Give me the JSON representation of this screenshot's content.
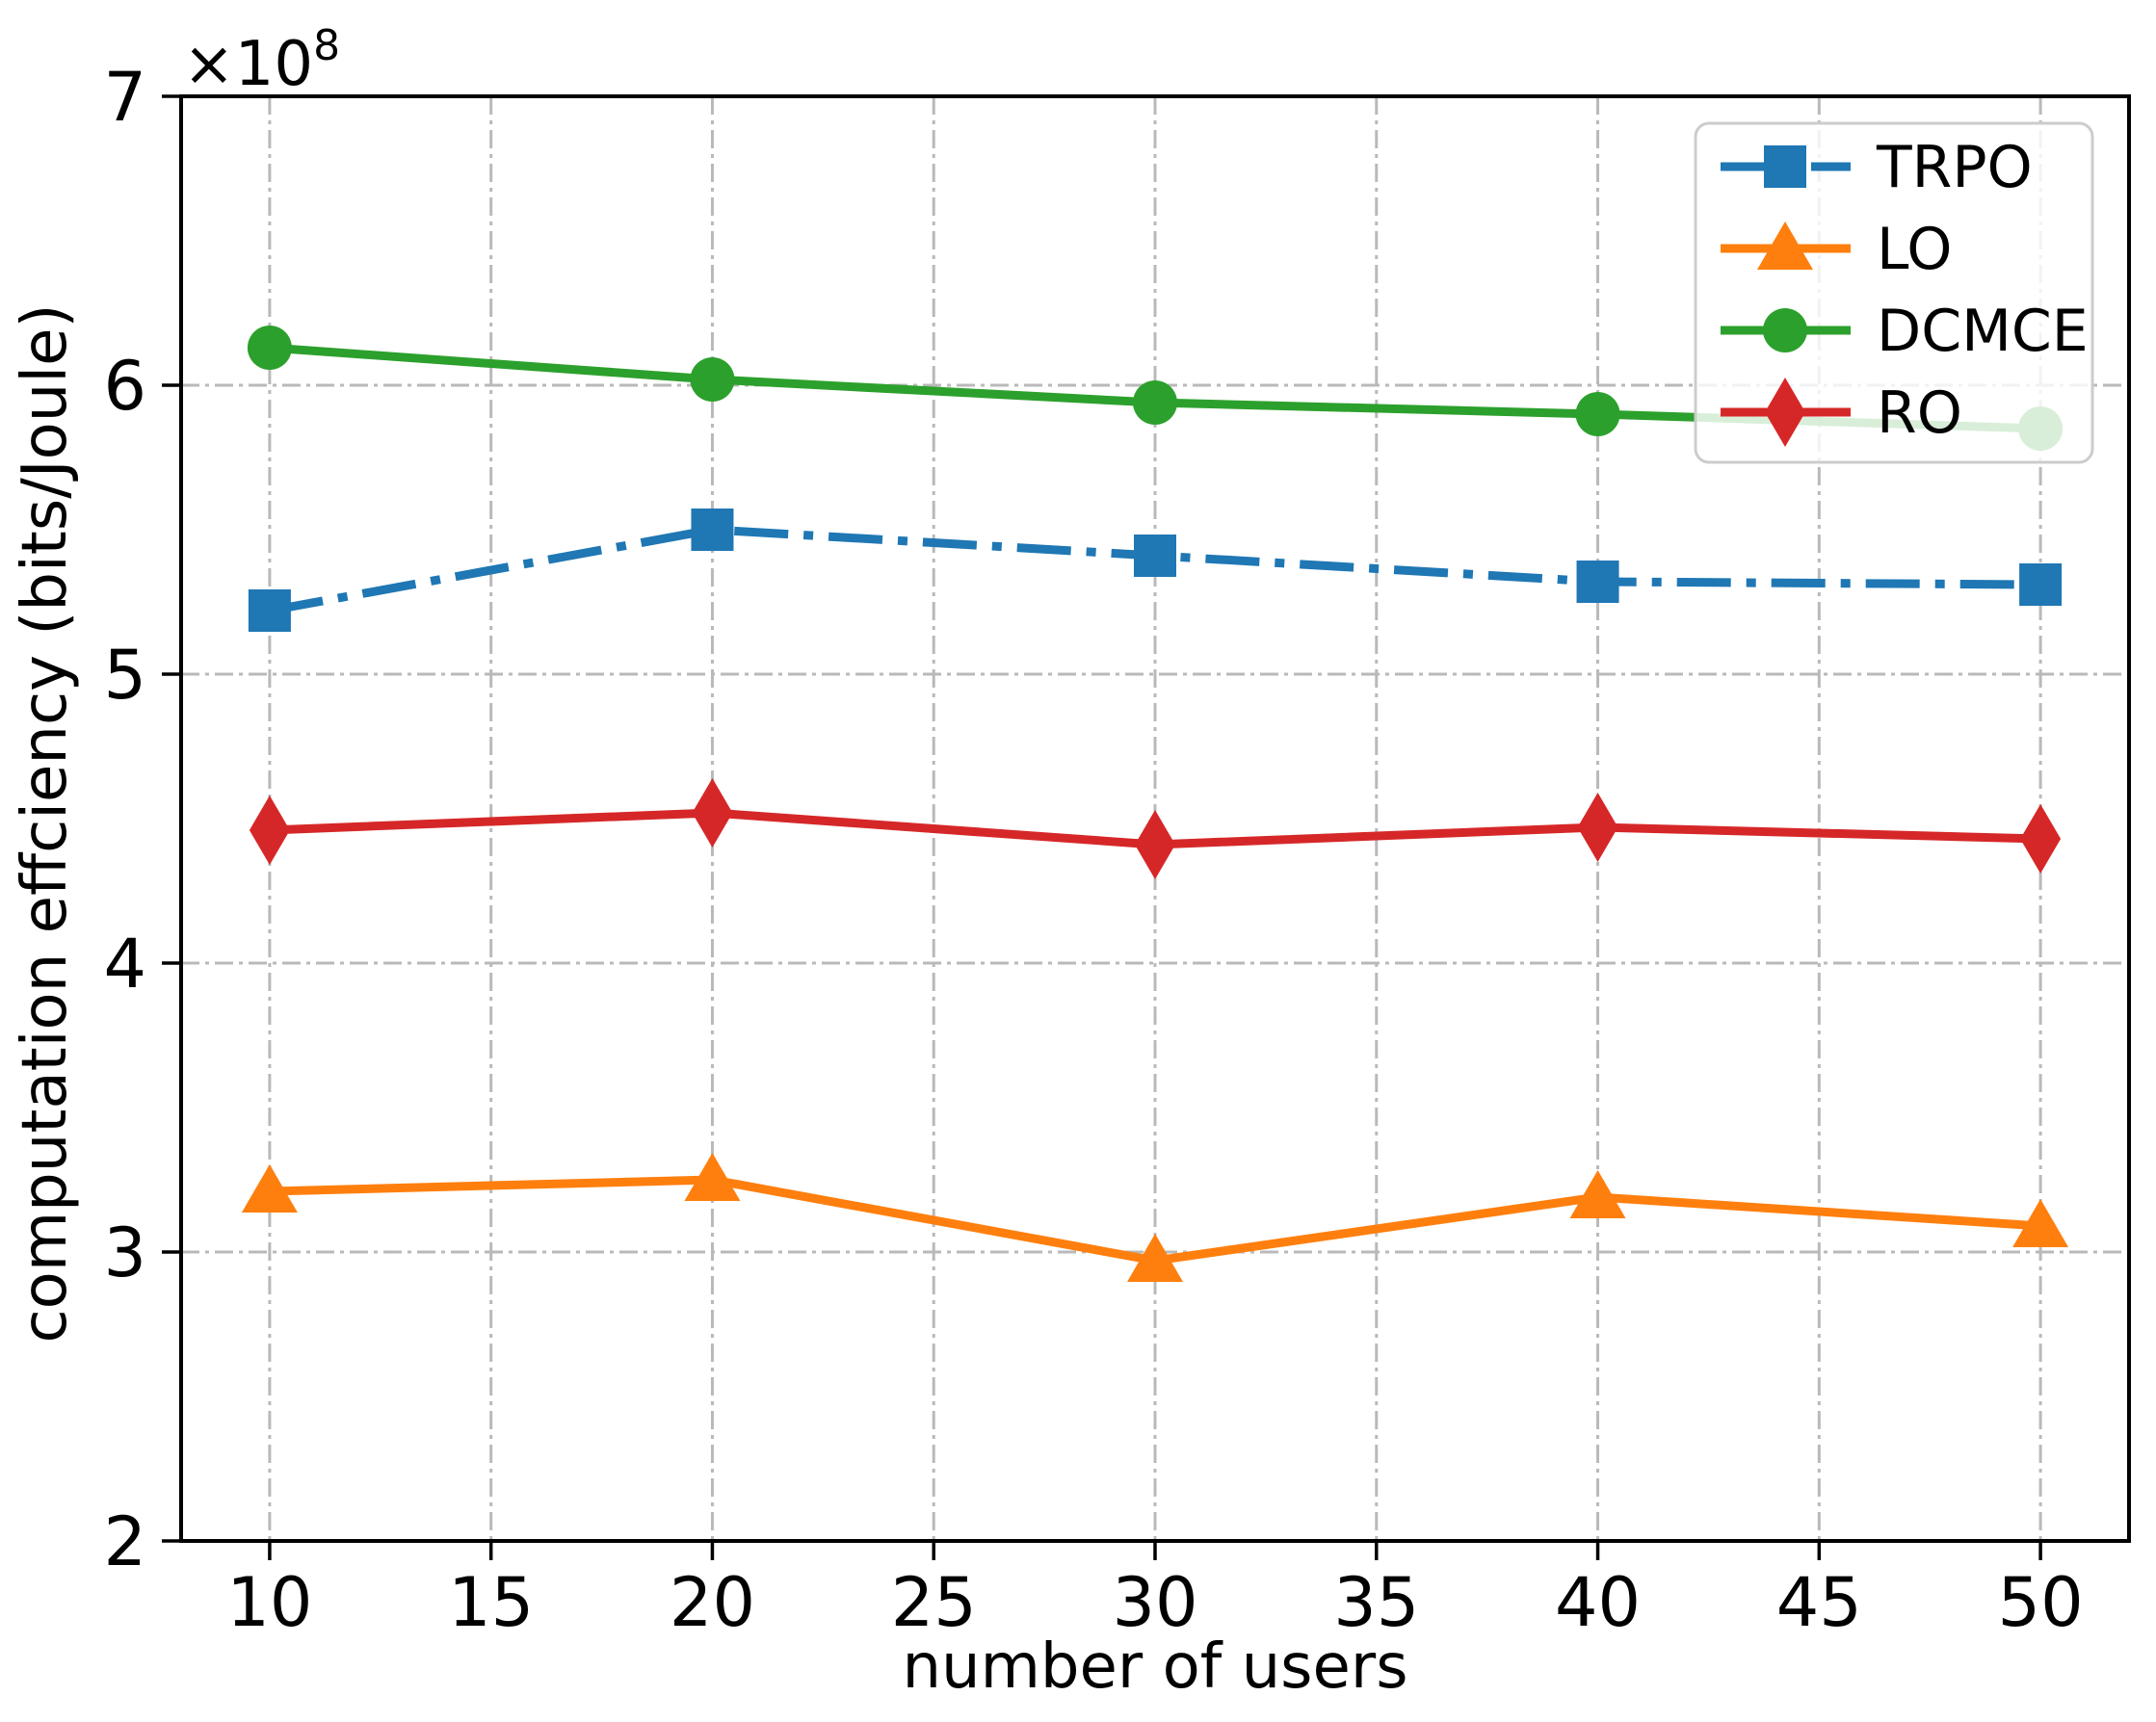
{
  "figure": {
    "xlabel": "number of users",
    "ylabel": "computation effciency (bits/Joule)",
    "offset": {
      "base": "×10",
      "exp": "8"
    }
  },
  "chart_data": {
    "type": "line",
    "title": "",
    "xlabel": "number of users",
    "ylabel": "computation effciency (bits/Joule)",
    "y_offset_label": "×10⁸",
    "unit": "×10^8 bits/Joule",
    "x": [
      10,
      20,
      30,
      40,
      50
    ],
    "series": [
      {
        "name": "TRPO",
        "color": "#1f77b4",
        "marker": "square",
        "linestyle": "dashdot",
        "values": [
          5.22,
          5.5,
          5.41,
          5.32,
          5.31
        ]
      },
      {
        "name": "LO",
        "color": "#ff7f0e",
        "marker": "triangle",
        "linestyle": "solid",
        "values": [
          3.21,
          3.25,
          2.97,
          3.19,
          3.09
        ]
      },
      {
        "name": "DCMCE",
        "color": "#2ca02c",
        "marker": "circle",
        "linestyle": "solid",
        "values": [
          6.13,
          6.02,
          5.94,
          5.9,
          5.85
        ]
      },
      {
        "name": "RO",
        "color": "#d62728",
        "marker": "diamond",
        "linestyle": "solid",
        "values": [
          4.46,
          4.52,
          4.41,
          4.47,
          4.43
        ]
      }
    ],
    "xticks": [
      10,
      15,
      20,
      25,
      30,
      35,
      40,
      45,
      50
    ],
    "yticks": [
      2,
      3,
      4,
      5,
      6,
      7
    ],
    "xlim": [
      8,
      52
    ],
    "ylim": [
      2,
      7
    ],
    "grid": true,
    "grid_style": "dashdot",
    "legend_position": "upper right",
    "legend_labels": [
      "TRPO",
      "LO",
      "DCMCE",
      "RO"
    ]
  },
  "style": {
    "grid_color": "#b9b9b9",
    "spine_color": "#000000",
    "text_color": "#000000",
    "legend_border": "#cccccc",
    "legend_fill_alpha": 0.82
  }
}
